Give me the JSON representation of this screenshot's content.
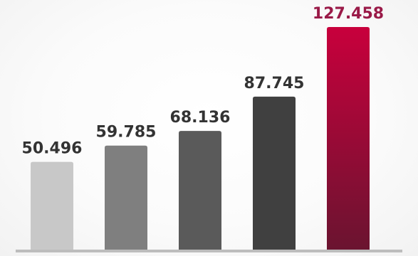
{
  "chart_data": {
    "type": "bar",
    "categories": [
      "",
      "",
      "",
      "",
      ""
    ],
    "values": [
      50.496,
      59.785,
      68.136,
      87.745,
      127.458
    ],
    "value_labels": [
      "50.496",
      "59.785",
      "68.136",
      "87.745",
      "127.458"
    ],
    "title": "",
    "xlabel": "",
    "ylabel": "",
    "ylim": [
      0,
      127.458
    ],
    "grid": false,
    "legend": "none",
    "bar_colors": [
      "#c8c8c8",
      "#7f7f7f",
      "#5a5a5a",
      "#404040",
      "#b01040"
    ],
    "highlight_bar_gradient": [
      "#c8003c",
      "#6a1430"
    ],
    "label_colors": [
      "#333333",
      "#333333",
      "#333333",
      "#333333",
      "#9a1a48"
    ],
    "axis_color": "#bdbdbd"
  }
}
